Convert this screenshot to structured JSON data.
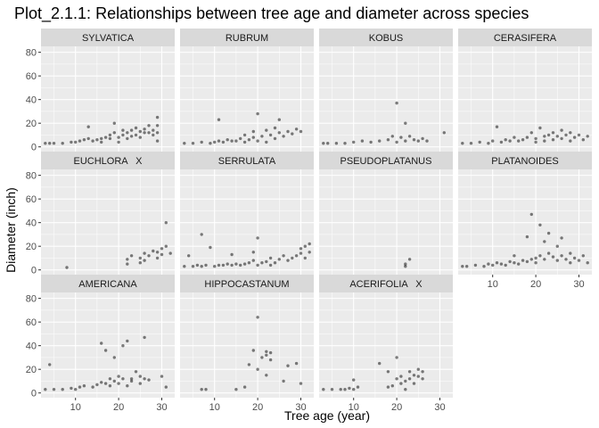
{
  "chart_data": {
    "type": "scatter",
    "title": "Plot_2.1.1: Relationships between tree age and diameter across species",
    "xlabel": "Tree age (year)",
    "ylabel": "Diameter (inch)",
    "xlim": [
      2,
      33
    ],
    "ylim": [
      -4,
      85
    ],
    "x_ticks": [
      10,
      20,
      30
    ],
    "y_ticks": [
      0,
      20,
      40,
      60,
      80
    ],
    "grid": true,
    "layout": {
      "columns": 4,
      "rows": 3
    },
    "point_color": "#000000",
    "point_alpha": 0.5,
    "panel_background": "#ebebeb",
    "strip_background": "#d9d9d9",
    "gridline_color": "#ffffff",
    "panels": [
      {
        "label": "SYLVATICA",
        "points": [
          [
            3,
            3
          ],
          [
            4,
            3
          ],
          [
            5,
            3
          ],
          [
            7,
            3
          ],
          [
            9,
            4
          ],
          [
            10,
            4
          ],
          [
            11,
            5
          ],
          [
            12,
            6
          ],
          [
            13,
            7
          ],
          [
            13,
            17
          ],
          [
            14,
            5
          ],
          [
            15,
            6
          ],
          [
            16,
            7
          ],
          [
            16,
            4
          ],
          [
            17,
            8
          ],
          [
            18,
            7
          ],
          [
            18,
            10
          ],
          [
            19,
            12
          ],
          [
            19,
            20
          ],
          [
            20,
            8
          ],
          [
            20,
            4
          ],
          [
            21,
            10
          ],
          [
            21,
            14
          ],
          [
            22,
            7
          ],
          [
            22,
            12
          ],
          [
            23,
            9
          ],
          [
            23,
            14
          ],
          [
            24,
            10
          ],
          [
            24,
            16
          ],
          [
            25,
            13
          ],
          [
            25,
            8
          ],
          [
            26,
            15
          ],
          [
            26,
            12
          ],
          [
            27,
            12
          ],
          [
            27,
            18
          ],
          [
            28,
            14
          ],
          [
            28,
            10
          ],
          [
            29,
            12
          ],
          [
            29,
            25
          ],
          [
            29,
            18
          ],
          [
            29,
            5
          ]
        ]
      },
      {
        "label": "RUBRUM",
        "points": [
          [
            3,
            3
          ],
          [
            5,
            3
          ],
          [
            7,
            4
          ],
          [
            9,
            3
          ],
          [
            10,
            4
          ],
          [
            11,
            5
          ],
          [
            11,
            23
          ],
          [
            12,
            4
          ],
          [
            13,
            6
          ],
          [
            14,
            5
          ],
          [
            15,
            5
          ],
          [
            16,
            7
          ],
          [
            17,
            4
          ],
          [
            17,
            10
          ],
          [
            18,
            6
          ],
          [
            19,
            8
          ],
          [
            19,
            13
          ],
          [
            20,
            5
          ],
          [
            20,
            28
          ],
          [
            21,
            9
          ],
          [
            22,
            14
          ],
          [
            22,
            4
          ],
          [
            23,
            10
          ],
          [
            24,
            7
          ],
          [
            24,
            16
          ],
          [
            25,
            12
          ],
          [
            25,
            23
          ],
          [
            26,
            9
          ],
          [
            27,
            13
          ],
          [
            28,
            11
          ],
          [
            29,
            15
          ],
          [
            30,
            13
          ]
        ]
      },
      {
        "label": "KOBUS",
        "points": [
          [
            3,
            3
          ],
          [
            4,
            3
          ],
          [
            6,
            3
          ],
          [
            8,
            3
          ],
          [
            10,
            4
          ],
          [
            12,
            5
          ],
          [
            14,
            4
          ],
          [
            16,
            5
          ],
          [
            18,
            6
          ],
          [
            19,
            9
          ],
          [
            20,
            4
          ],
          [
            20,
            37
          ],
          [
            21,
            8
          ],
          [
            22,
            5
          ],
          [
            22,
            20
          ],
          [
            23,
            9
          ],
          [
            24,
            6
          ],
          [
            25,
            5
          ],
          [
            26,
            7
          ],
          [
            27,
            5
          ],
          [
            31,
            12
          ]
        ]
      },
      {
        "label": "CERASIFERA",
        "points": [
          [
            3,
            3
          ],
          [
            5,
            3
          ],
          [
            7,
            4
          ],
          [
            9,
            3
          ],
          [
            10,
            5
          ],
          [
            11,
            17
          ],
          [
            12,
            4
          ],
          [
            13,
            6
          ],
          [
            14,
            5
          ],
          [
            15,
            8
          ],
          [
            16,
            5
          ],
          [
            17,
            6
          ],
          [
            18,
            8
          ],
          [
            19,
            12
          ],
          [
            20,
            4
          ],
          [
            20,
            7
          ],
          [
            21,
            16
          ],
          [
            22,
            9
          ],
          [
            22,
            5
          ],
          [
            23,
            10
          ],
          [
            24,
            6
          ],
          [
            24,
            12
          ],
          [
            25,
            9
          ],
          [
            26,
            7
          ],
          [
            26,
            14
          ],
          [
            27,
            10
          ],
          [
            28,
            12
          ],
          [
            28,
            5
          ],
          [
            29,
            8
          ],
          [
            30,
            10
          ],
          [
            31,
            6
          ],
          [
            32,
            9
          ]
        ]
      },
      {
        "label": "EUCHLORA   X",
        "points": [
          [
            8,
            2
          ],
          [
            22,
            5
          ],
          [
            22,
            9
          ],
          [
            23,
            12
          ],
          [
            25,
            6
          ],
          [
            25,
            10
          ],
          [
            26,
            14
          ],
          [
            26,
            8
          ],
          [
            27,
            12
          ],
          [
            28,
            16
          ],
          [
            29,
            10
          ],
          [
            29,
            15
          ],
          [
            30,
            18
          ],
          [
            30,
            13
          ],
          [
            31,
            20
          ],
          [
            31,
            40
          ],
          [
            32,
            14
          ]
        ]
      },
      {
        "label": "SERRULATA",
        "points": [
          [
            3,
            3
          ],
          [
            4,
            12
          ],
          [
            5,
            3
          ],
          [
            6,
            4
          ],
          [
            7,
            30
          ],
          [
            7,
            3
          ],
          [
            8,
            4
          ],
          [
            9,
            19
          ],
          [
            10,
            3
          ],
          [
            11,
            4
          ],
          [
            12,
            4
          ],
          [
            13,
            5
          ],
          [
            14,
            4
          ],
          [
            14,
            13
          ],
          [
            15,
            5
          ],
          [
            16,
            4
          ],
          [
            17,
            5
          ],
          [
            18,
            6
          ],
          [
            19,
            8
          ],
          [
            19,
            15
          ],
          [
            20,
            4
          ],
          [
            20,
            27
          ],
          [
            21,
            6
          ],
          [
            22,
            7
          ],
          [
            23,
            10
          ],
          [
            23,
            4
          ],
          [
            24,
            6
          ],
          [
            25,
            9
          ],
          [
            26,
            12
          ],
          [
            27,
            8
          ],
          [
            28,
            10
          ],
          [
            29,
            12
          ],
          [
            30,
            14
          ],
          [
            30,
            18
          ],
          [
            31,
            20
          ],
          [
            31,
            10
          ],
          [
            32,
            15
          ],
          [
            32,
            22
          ]
        ]
      },
      {
        "label": "PSEUDOPLATANUS",
        "points": [
          [
            22,
            3
          ],
          [
            22,
            5
          ],
          [
            23,
            9
          ]
        ]
      },
      {
        "label": "PLATANOIDES",
        "points": [
          [
            3,
            3
          ],
          [
            4,
            3
          ],
          [
            6,
            4
          ],
          [
            8,
            3
          ],
          [
            9,
            5
          ],
          [
            10,
            4
          ],
          [
            11,
            6
          ],
          [
            12,
            5
          ],
          [
            13,
            4
          ],
          [
            14,
            7
          ],
          [
            15,
            6
          ],
          [
            15,
            12
          ],
          [
            16,
            5
          ],
          [
            17,
            8
          ],
          [
            18,
            7
          ],
          [
            18,
            28
          ],
          [
            19,
            9
          ],
          [
            19,
            47
          ],
          [
            20,
            6
          ],
          [
            20,
            10
          ],
          [
            21,
            12
          ],
          [
            21,
            38
          ],
          [
            22,
            24
          ],
          [
            22,
            9
          ],
          [
            23,
            14
          ],
          [
            23,
            31
          ],
          [
            24,
            11
          ],
          [
            25,
            20
          ],
          [
            25,
            8
          ],
          [
            26,
            12
          ],
          [
            26,
            27
          ],
          [
            27,
            9
          ],
          [
            28,
            14
          ],
          [
            28,
            6
          ],
          [
            29,
            10
          ],
          [
            30,
            8
          ],
          [
            31,
            12
          ],
          [
            32,
            6
          ]
        ]
      },
      {
        "label": "AMERICANA",
        "points": [
          [
            3,
            3
          ],
          [
            4,
            24
          ],
          [
            5,
            3
          ],
          [
            7,
            3
          ],
          [
            9,
            4
          ],
          [
            10,
            3
          ],
          [
            11,
            5
          ],
          [
            12,
            6
          ],
          [
            14,
            5
          ],
          [
            15,
            7
          ],
          [
            16,
            42
          ],
          [
            16,
            9
          ],
          [
            17,
            8
          ],
          [
            17,
            36
          ],
          [
            18,
            6
          ],
          [
            18,
            12
          ],
          [
            19,
            10
          ],
          [
            19,
            30
          ],
          [
            20,
            8
          ],
          [
            20,
            14
          ],
          [
            21,
            40
          ],
          [
            21,
            12
          ],
          [
            22,
            44
          ],
          [
            22,
            6
          ],
          [
            23,
            12
          ],
          [
            23,
            10
          ],
          [
            24,
            18
          ],
          [
            25,
            14
          ],
          [
            25,
            8
          ],
          [
            26,
            47
          ],
          [
            26,
            12
          ],
          [
            27,
            11
          ],
          [
            30,
            14
          ],
          [
            31,
            5
          ]
        ]
      },
      {
        "label": "HIPPOCASTANUM",
        "points": [
          [
            7,
            3
          ],
          [
            8,
            3
          ],
          [
            15,
            3
          ],
          [
            17,
            5
          ],
          [
            18,
            24
          ],
          [
            19,
            36
          ],
          [
            20,
            64
          ],
          [
            20,
            20
          ],
          [
            21,
            30
          ],
          [
            22,
            32
          ],
          [
            22,
            35
          ],
          [
            22,
            15
          ],
          [
            23,
            28
          ],
          [
            23,
            34
          ],
          [
            26,
            10
          ],
          [
            27,
            23
          ],
          [
            29,
            25
          ],
          [
            30,
            8
          ]
        ]
      },
      {
        "label": "ACERIFOLIA   X",
        "points": [
          [
            3,
            3
          ],
          [
            5,
            3
          ],
          [
            7,
            3
          ],
          [
            8,
            3
          ],
          [
            9,
            4
          ],
          [
            10,
            3
          ],
          [
            10,
            11
          ],
          [
            11,
            5
          ],
          [
            16,
            25
          ],
          [
            18,
            5
          ],
          [
            18,
            18
          ],
          [
            19,
            6
          ],
          [
            20,
            12
          ],
          [
            20,
            30
          ],
          [
            21,
            8
          ],
          [
            21,
            14
          ],
          [
            22,
            10
          ],
          [
            22,
            3
          ],
          [
            23,
            18
          ],
          [
            23,
            12
          ],
          [
            24,
            15
          ],
          [
            24,
            8
          ],
          [
            25,
            14
          ],
          [
            25,
            20
          ],
          [
            26,
            18
          ],
          [
            26,
            12
          ]
        ]
      }
    ]
  }
}
